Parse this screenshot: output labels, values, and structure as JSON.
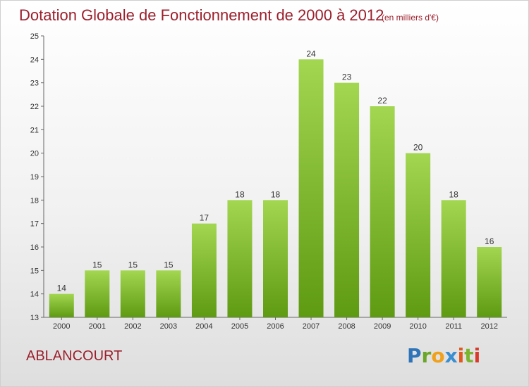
{
  "header": {
    "title": "Dotation Globale de Fonctionnement de 2000 à 2012",
    "subtitle": "(en milliers d'€)"
  },
  "footer": {
    "city": "ABLANCOURT",
    "logo": "Proxiti"
  },
  "colors": {
    "title": "#9b1f2c",
    "bar_light": "#9ed24a",
    "bar_dark": "#5e9a12"
  },
  "chart_data": {
    "type": "bar",
    "categories": [
      "2000",
      "2001",
      "2002",
      "2003",
      "2004",
      "2005",
      "2006",
      "2007",
      "2008",
      "2009",
      "2010",
      "2011",
      "2012"
    ],
    "values": [
      14,
      15,
      15,
      15,
      17,
      18,
      18,
      24,
      23,
      22,
      20,
      18,
      16
    ],
    "title": "Dotation Globale de Fonctionnement de 2000 à 2012",
    "subtitle": "(en milliers d'€)",
    "xlabel": "",
    "ylabel": "",
    "ylim": [
      13,
      25
    ],
    "yticks": [
      13,
      14,
      15,
      16,
      17,
      18,
      19,
      20,
      21,
      22,
      23,
      24,
      25
    ],
    "grid": false,
    "legend": "none"
  }
}
